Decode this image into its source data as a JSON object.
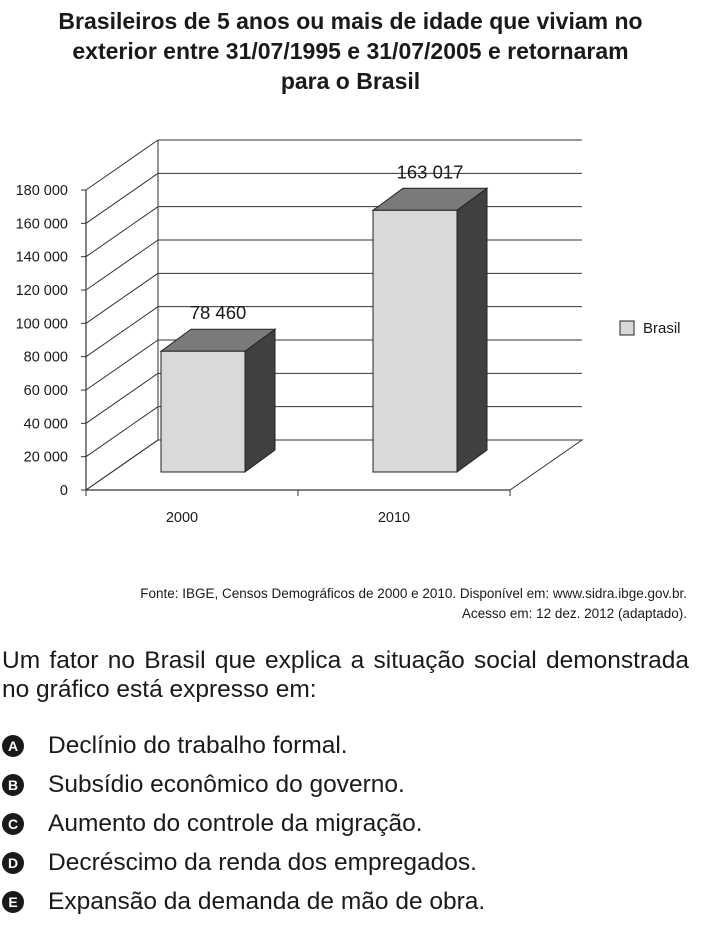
{
  "chart_data": {
    "type": "bar",
    "title_lines": [
      "Brasileiros de 5 anos ou mais de idade que viviam no",
      "exterior entre 31/07/1995 e 31/07/2005 e retornaram",
      "para o Brasil"
    ],
    "categories": [
      "2000",
      "2010"
    ],
    "series": [
      {
        "name": "Brasil",
        "values": [
          78460,
          163017
        ]
      }
    ],
    "data_labels": [
      "78 460",
      "163 017"
    ],
    "yticks": [
      0,
      20000,
      40000,
      60000,
      80000,
      100000,
      120000,
      140000,
      160000,
      180000
    ],
    "ytick_labels": [
      "0",
      "20 000",
      "40 000",
      "60 000",
      "80 000",
      "100 000",
      "120 000",
      "140 000",
      "160 000",
      "180 000"
    ],
    "ylim": [
      0,
      180000
    ],
    "xlabel": "",
    "ylabel": "",
    "grid": true,
    "legend": "right",
    "bar_color": "#d9d9d9"
  },
  "source": {
    "line1": "Fonte: IBGE, Censos Demográficos de 2000 e 2010. Disponível em: www.sidra.ibge.gov.br.",
    "line2": "Acesso em: 12 dez. 2012 (adaptado)."
  },
  "question": {
    "text": "Um fator no Brasil que explica a situação social demonstrada no gráfico está expresso em:",
    "options": [
      {
        "letter": "A",
        "text": "Declínio do trabalho formal."
      },
      {
        "letter": "B",
        "text": "Subsídio econômico do governo."
      },
      {
        "letter": "C",
        "text": "Aumento do controle da migração."
      },
      {
        "letter": "D",
        "text": "Decréscimo da renda dos empregados."
      },
      {
        "letter": "E",
        "text": "Expansão da demanda de mão de obra."
      }
    ]
  }
}
